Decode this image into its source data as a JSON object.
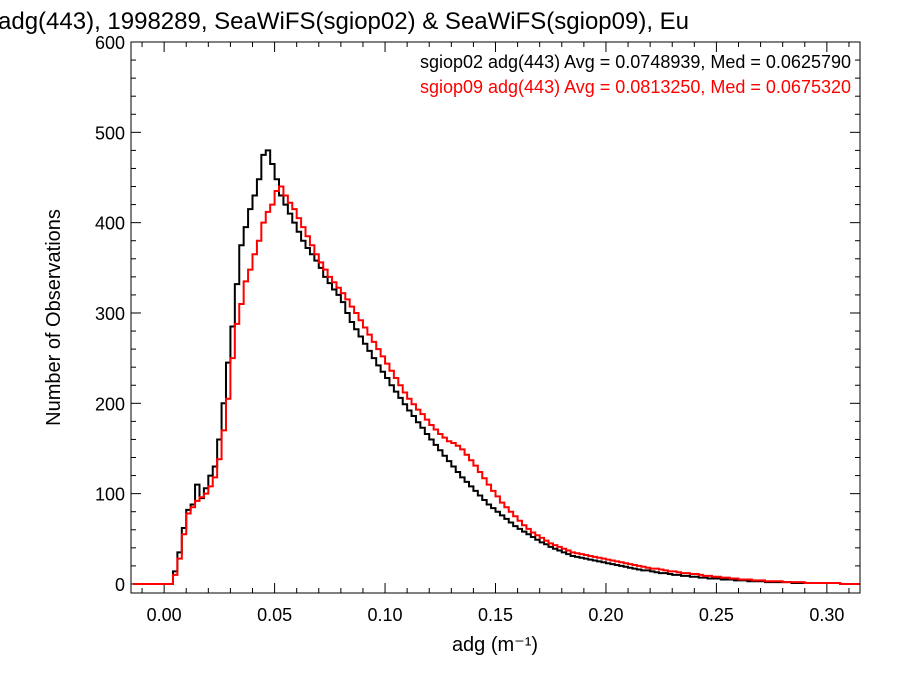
{
  "chart_data": {
    "type": "line",
    "style": "histogram-step",
    "title": "adg(443), 1998289, SeaWiFS(sgiop02) & SeaWiFS(sgiop09), Eu",
    "xlabel": "adg (m⁻¹)",
    "ylabel": "Number of Observations",
    "xlim": [
      -0.015,
      0.315
    ],
    "ylim": [
      -10,
      600
    ],
    "x_ticks": [
      "0.00",
      "0.05",
      "0.10",
      "0.15",
      "0.20",
      "0.25",
      "0.30"
    ],
    "y_ticks": [
      "0",
      "100",
      "200",
      "300",
      "400",
      "500",
      "600"
    ],
    "grid": false,
    "legend_position": "top-right",
    "bin_width": 0.002,
    "x_start": -0.014,
    "series": [
      {
        "name": "sgiop02 adg(443) Avg = 0.0748939, Med = 0.0625790",
        "color": "#000000",
        "values": [
          0,
          0,
          0,
          0,
          0,
          0,
          0,
          0,
          0,
          14,
          35,
          62,
          82,
          88,
          110,
          95,
          106,
          120,
          130,
          160,
          200,
          245,
          285,
          332,
          375,
          395,
          415,
          430,
          448,
          475,
          480,
          465,
          448,
          430,
          420,
          410,
          400,
          390,
          380,
          372,
          365,
          358,
          350,
          340,
          333,
          326,
          320,
          312,
          300,
          290,
          282,
          274,
          266,
          258,
          250,
          242,
          235,
          228,
          220,
          213,
          206,
          199,
          192,
          186,
          179,
          173,
          166,
          160,
          154,
          148,
          142,
          136,
          130,
          124,
          118,
          113,
          108,
          103,
          98,
          93,
          88,
          84,
          80,
          76,
          72,
          68,
          64,
          61,
          58,
          55,
          52,
          49,
          46,
          44,
          41,
          39,
          37,
          35,
          33,
          31,
          30,
          29,
          28,
          27,
          26,
          25,
          24,
          23,
          22,
          21,
          20,
          19,
          18,
          17,
          16,
          15,
          15,
          14,
          13,
          12,
          12,
          11,
          10,
          10,
          9,
          9,
          8,
          8,
          7,
          7,
          6,
          6,
          6,
          5,
          5,
          5,
          4,
          4,
          4,
          3,
          3,
          3,
          3,
          2,
          2,
          2,
          2,
          2,
          2,
          1,
          1,
          1,
          1,
          1,
          1,
          1,
          1,
          1,
          1,
          1,
          0,
          0,
          0,
          0
        ]
      },
      {
        "name": "sgiop09 adg(443) Avg = 0.0813250, Med = 0.0675320",
        "color": "#ff0000",
        "values": [
          0,
          0,
          0,
          0,
          0,
          0,
          0,
          0,
          0,
          10,
          28,
          55,
          78,
          85,
          92,
          96,
          100,
          108,
          118,
          138,
          170,
          205,
          250,
          288,
          310,
          335,
          348,
          365,
          380,
          400,
          412,
          420,
          435,
          440,
          430,
          422,
          415,
          405,
          395,
          385,
          375,
          365,
          356,
          348,
          340,
          334,
          328,
          322,
          315,
          307,
          300,
          292,
          284,
          276,
          268,
          260,
          252,
          244,
          236,
          228,
          220,
          212,
          205,
          199,
          193,
          188,
          182,
          176,
          171,
          166,
          162,
          158,
          156,
          153,
          149,
          143,
          137,
          131,
          124,
          117,
          110,
          103,
          97,
          90,
          85,
          80,
          75,
          70,
          65,
          61,
          57,
          54,
          51,
          48,
          45,
          43,
          41,
          39,
          37,
          35,
          34,
          33,
          32,
          31,
          30,
          29,
          28,
          27,
          26,
          25,
          24,
          23,
          22,
          21,
          20,
          19,
          18,
          17,
          17,
          16,
          15,
          14,
          14,
          13,
          12,
          12,
          11,
          11,
          10,
          9,
          9,
          8,
          8,
          7,
          7,
          6,
          6,
          5,
          5,
          5,
          4,
          4,
          4,
          3,
          3,
          3,
          3,
          2,
          2,
          2,
          2,
          2,
          1,
          1,
          1,
          1,
          1,
          1,
          1,
          1,
          0,
          0,
          0,
          0,
          0
        ]
      }
    ]
  }
}
